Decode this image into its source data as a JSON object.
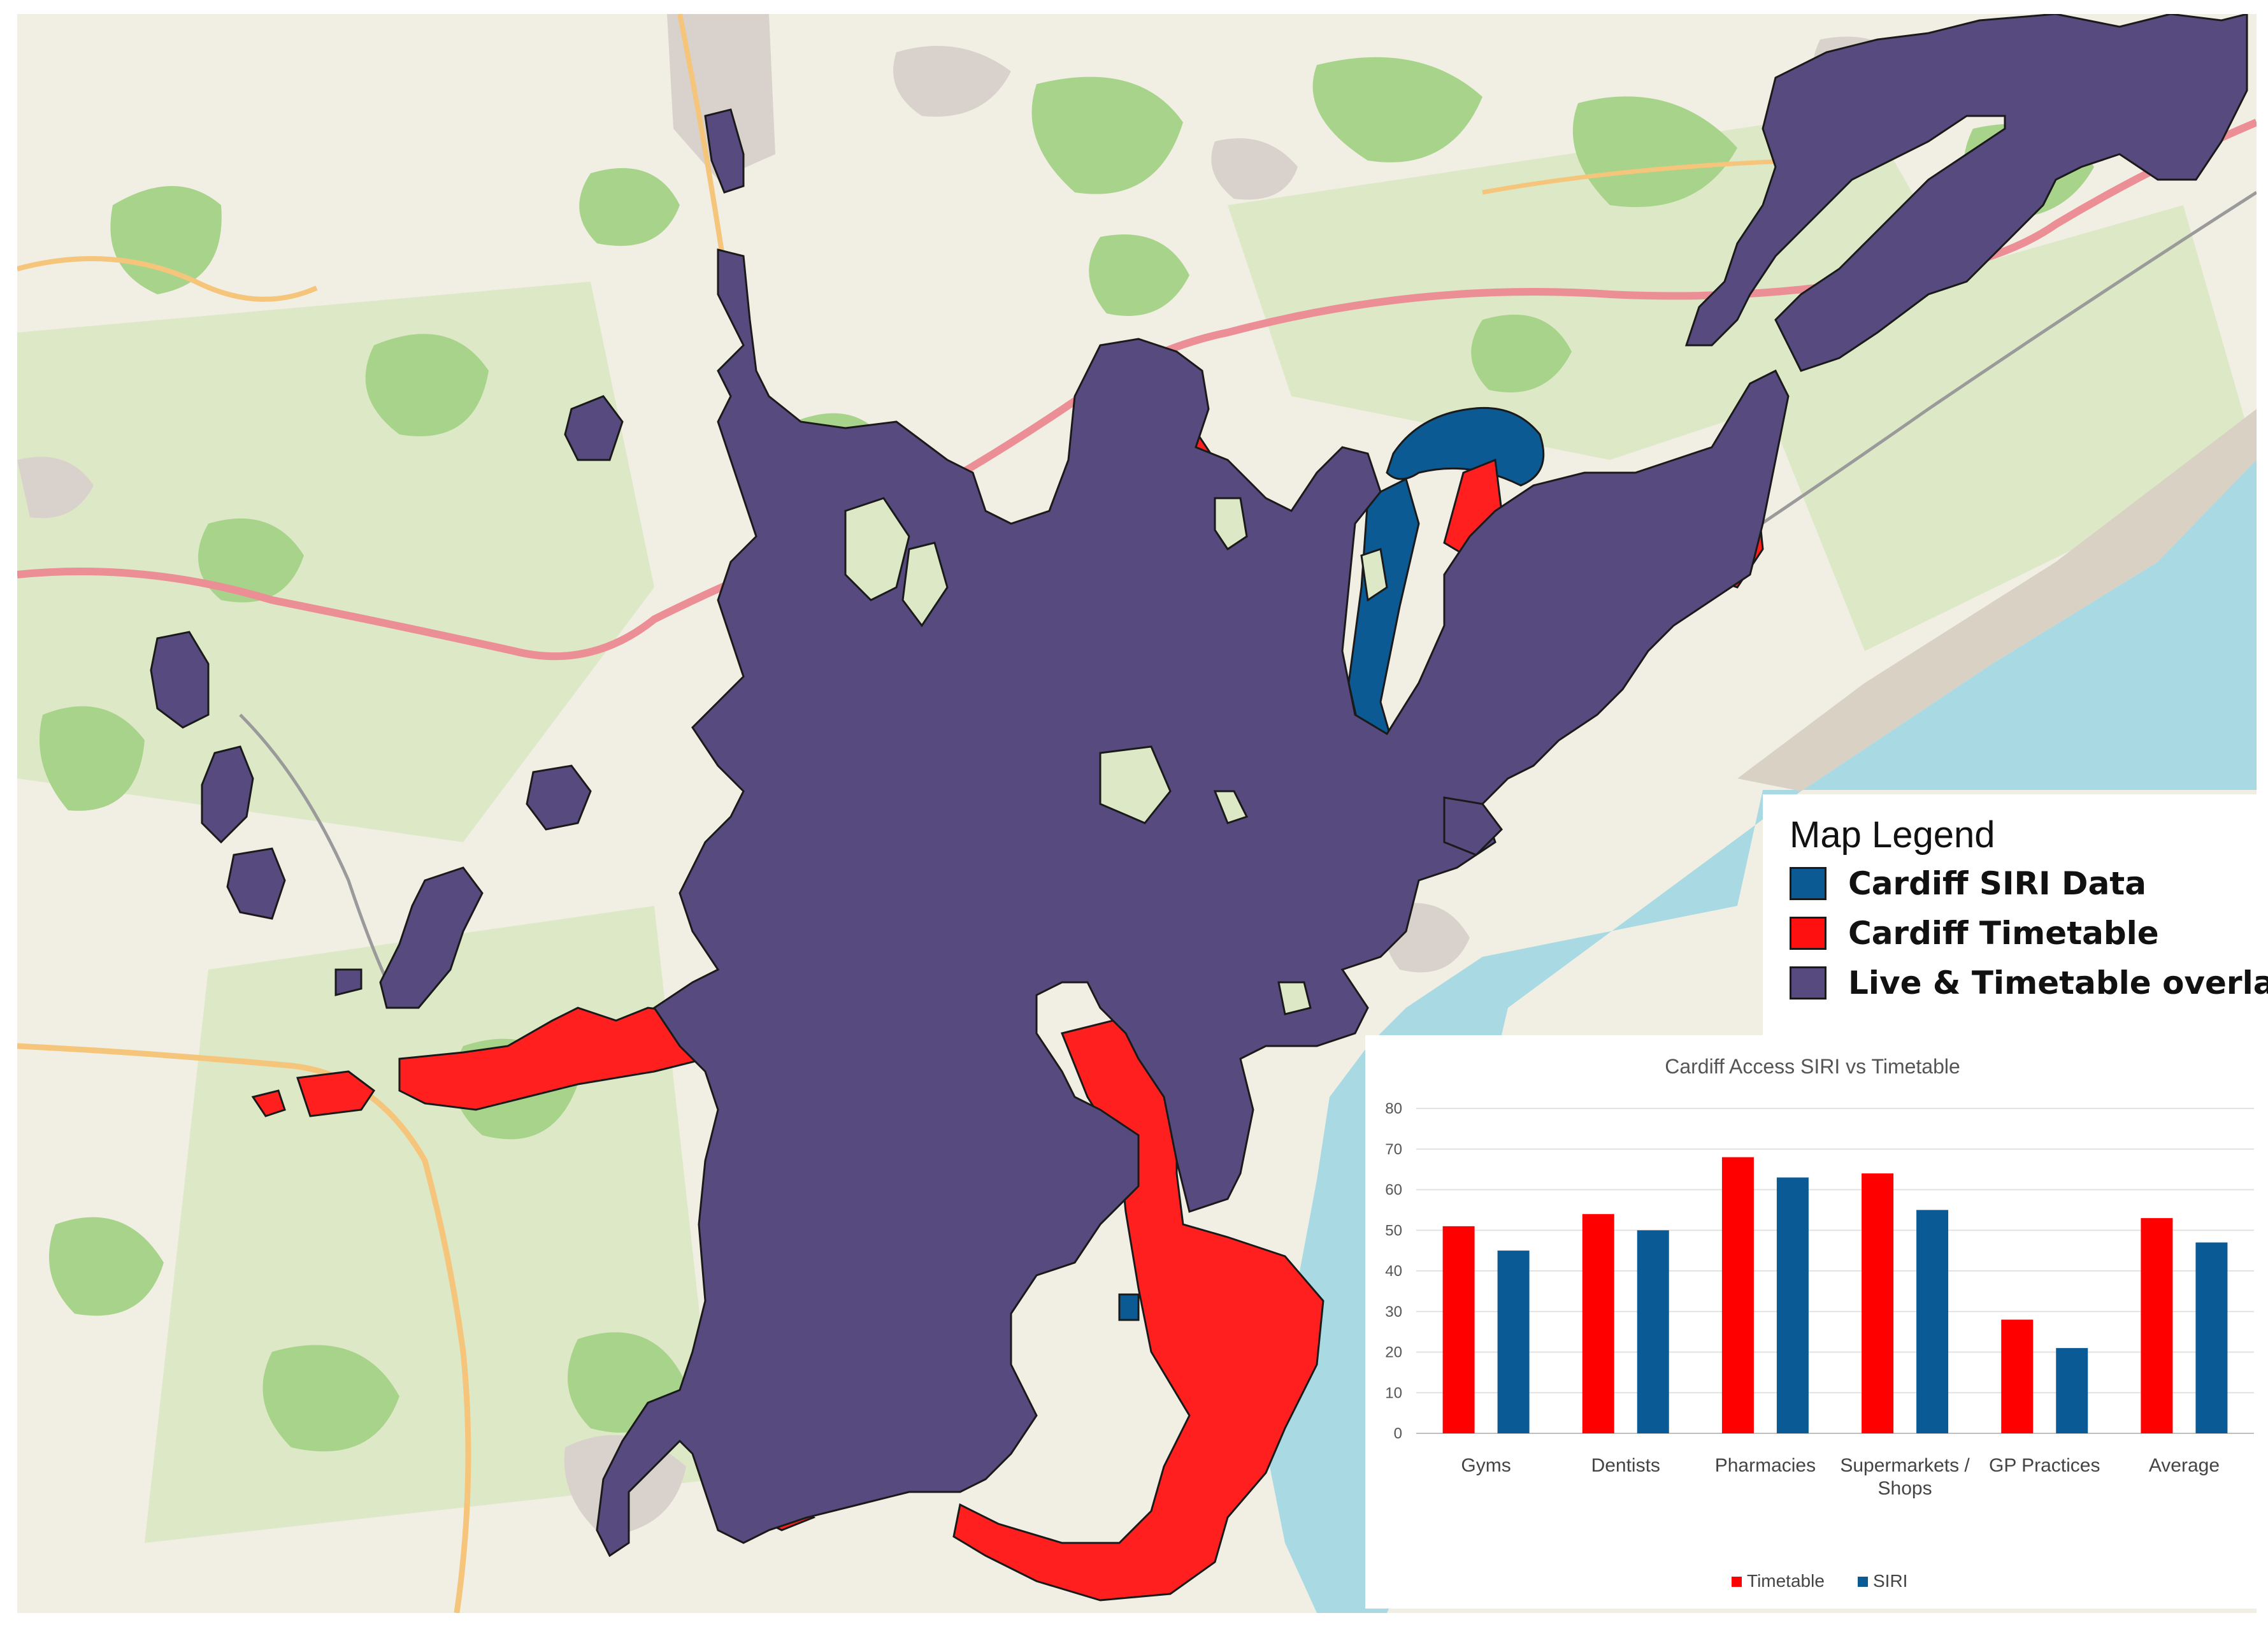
{
  "map": {
    "legend": {
      "title": "Map Legend",
      "items": [
        {
          "label": "Cardiff SIRI Data",
          "color": "#0c5a94"
        },
        {
          "label": "Cardiff Timetable",
          "color": "#ff1010"
        },
        {
          "label": "Live & Timetable overlap",
          "color": "#564a7e"
        }
      ]
    },
    "colors": {
      "basemap": "#f1efe4",
      "woodland": "#a8d38a",
      "farmland": "#dde9c6",
      "urban": "#d9d2cc",
      "sea": "#a9dae3",
      "mudflat": "#d9d2c4",
      "motorway": "#ec8e95",
      "a_road": "#f5c57c",
      "railway": "#9a9a9a"
    }
  },
  "chart_data": {
    "type": "bar",
    "title": "Cardiff Access SIRI vs Timetable",
    "categories": [
      "Gyms",
      "Dentists",
      "Pharmacies",
      "Supermarkets / Shops",
      "GP Practices",
      "Average"
    ],
    "series": [
      {
        "name": "Timetable",
        "color": "#ff0000",
        "values": [
          51,
          54,
          68,
          64,
          28,
          53
        ]
      },
      {
        "name": "SIRI",
        "color": "#0a5a96",
        "values": [
          45,
          50,
          63,
          55,
          21,
          47
        ]
      }
    ],
    "ylim": [
      0,
      80
    ],
    "yticks": [
      0,
      10,
      20,
      30,
      40,
      50,
      60,
      70,
      80
    ],
    "grid": true,
    "legend_position": "bottom"
  }
}
